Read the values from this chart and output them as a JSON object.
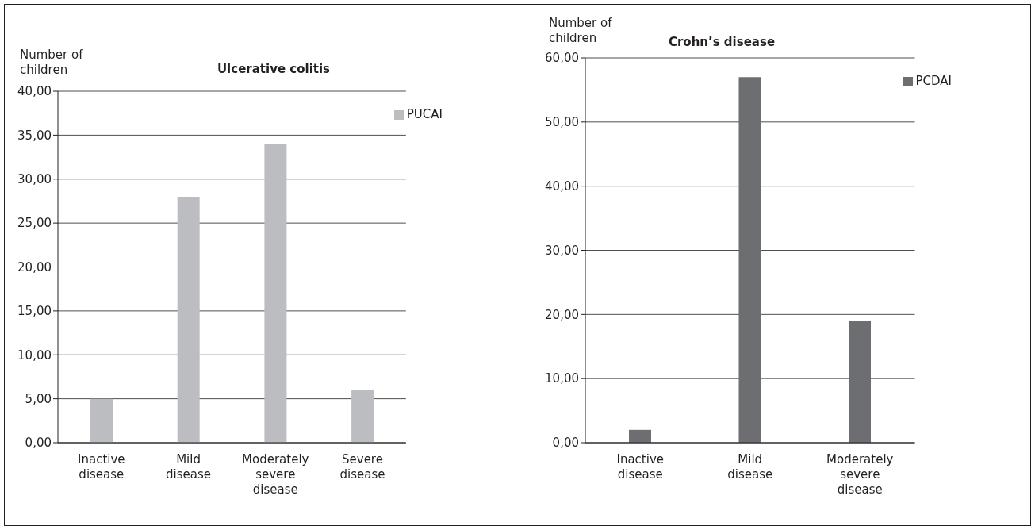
{
  "chart_data": [
    {
      "type": "bar",
      "title": "Ulcerative colitis",
      "ylabel": "Number of children",
      "categories": [
        "Inactive disease",
        "Mild disease",
        "Moderately severe disease",
        "Severe disease"
      ],
      "series": [
        {
          "name": "PUCAI",
          "color": "#bcbdc0",
          "values": [
            5,
            28,
            34,
            6
          ]
        }
      ],
      "ylim": [
        0,
        40
      ],
      "yticks": [
        {
          "value": 0,
          "label": "0,00"
        },
        {
          "value": 5,
          "label": "5,00"
        },
        {
          "value": 10,
          "label": "10,00"
        },
        {
          "value": 15,
          "label": "15,00"
        },
        {
          "value": 20,
          "label": "20,00"
        },
        {
          "value": 25,
          "label": "25,00"
        },
        {
          "value": 30,
          "label": "30,00"
        },
        {
          "value": 35,
          "label": "35,00"
        },
        {
          "value": 40,
          "label": "40,00"
        }
      ],
      "grid": "y",
      "legend": "top right"
    },
    {
      "type": "bar",
      "title": "Crohn’s disease",
      "ylabel": "Number of children",
      "categories": [
        "Inactive disease",
        "Mild disease",
        "Moderately severe disease"
      ],
      "series": [
        {
          "name": "PCDAI",
          "color": "#6d6e71",
          "values": [
            2,
            57,
            19
          ]
        }
      ],
      "ylim": [
        0,
        60
      ],
      "yticks": [
        {
          "value": 0,
          "label": "0,00"
        },
        {
          "value": 10,
          "label": "10,00"
        },
        {
          "value": 20,
          "label": "20,00"
        },
        {
          "value": 30,
          "label": "30,00"
        },
        {
          "value": 40,
          "label": "40,00"
        },
        {
          "value": 50,
          "label": "50,00"
        },
        {
          "value": 60,
          "label": "60,00"
        }
      ],
      "grid": "y",
      "legend": "top right"
    }
  ]
}
